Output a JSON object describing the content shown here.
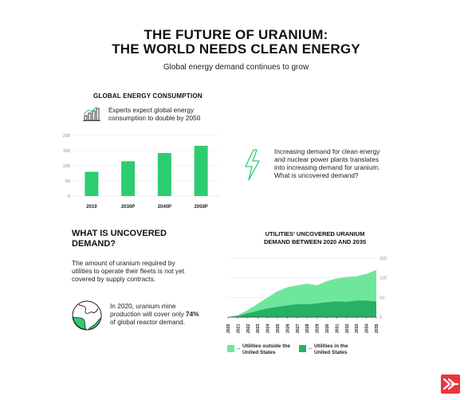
{
  "header": {
    "title_line1": "THE FUTURE OF URANIUM:",
    "title_line2": "THE WORLD NEEDS CLEAN ENERGY",
    "subtitle": "Global energy demand continues to grow"
  },
  "consumption": {
    "title": "GLOBAL ENERGY CONSUMPTION",
    "note": "Experts expect global energy consumption to double by 2050"
  },
  "demand_note": "Increasing demand for clean energy and nuclear power plants translates into increasing demand for uranium. What is uncovered demand?",
  "uncovered": {
    "title_line1": "WHAT IS UNCOVERED",
    "title_line2": "DEMAND?",
    "definition": "The amount of uranium required by utilities to operate their fleets is not yet covered by supply contracts.",
    "fact_before": "In 2020, uranium mine production will cover only ",
    "fact_highlight": "74%",
    "fact_after": " of global reactor demand."
  },
  "colors": {
    "accent": "#2ecc71",
    "dark_green": "#27b163",
    "light_green": "#6ee79c",
    "logo_red": "#e8373b"
  },
  "icons": [
    "bar-chart-icon",
    "lightning-icon",
    "globe-icon",
    "brand-logo-icon"
  ],
  "chart_data": [
    {
      "type": "bar",
      "title": "GLOBAL ENERGY CONSUMPTION",
      "categories": [
        "2019",
        "2030P",
        "2040P",
        "2050P"
      ],
      "values": [
        80,
        115,
        142,
        166
      ],
      "ylim": [
        0,
        200
      ],
      "yticks": [
        0,
        50,
        100,
        150,
        200
      ],
      "grid": true
    },
    {
      "type": "area",
      "title_line1": "UTILITIES' UNCOVERED URANIUM",
      "title_line2": "DEMAND BETWEEN 2020 AND 2035",
      "x": [
        "2020",
        "2021",
        "2022",
        "2023",
        "2024",
        "2025",
        "2026",
        "2027",
        "2028",
        "2029",
        "2030",
        "2031",
        "2032",
        "2033",
        "2034",
        "2035"
      ],
      "ylim": [
        0,
        150
      ],
      "yticks": [
        0,
        50,
        100,
        150
      ],
      "y_axis_side": "right",
      "stacked": true,
      "legend_position": "bottom",
      "series": [
        {
          "name": "Utilities in the United States",
          "color": "#27b163",
          "values": [
            0,
            3,
            10,
            16,
            22,
            26,
            30,
            33,
            33,
            35,
            38,
            40,
            39,
            42,
            42,
            40
          ]
        },
        {
          "name": "Utilities outside the United States",
          "color": "#6ee79c",
          "values": [
            0,
            2,
            8,
            18,
            28,
            40,
            46,
            48,
            52,
            46,
            54,
            58,
            63,
            62,
            68,
            80
          ]
        }
      ]
    }
  ]
}
